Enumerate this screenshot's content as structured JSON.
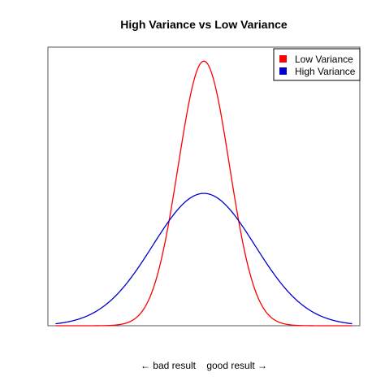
{
  "chart_data": {
    "type": "line",
    "title": "High Variance vs Low Variance",
    "xlabel": "← bad result    good result →",
    "ylabel": "",
    "xlim": [
      -3.05,
      3.05
    ],
    "ylim": [
      0,
      0.84
    ],
    "grid": false,
    "legend_position": "top-right",
    "series": [
      {
        "name": "Low Variance",
        "color": "#ff0000",
        "mean": 0,
        "sd": 0.5
      },
      {
        "name": "High Variance",
        "color": "#0000cc",
        "mean": 0,
        "sd": 1.0
      }
    ],
    "x_range": [
      -2.9,
      2.9
    ]
  }
}
